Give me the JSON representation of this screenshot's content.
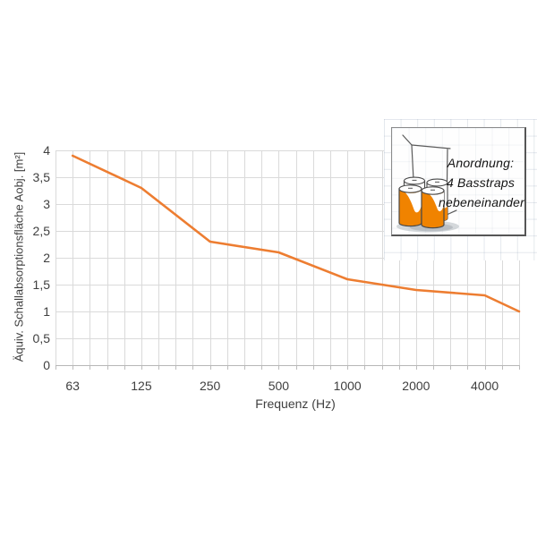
{
  "chart": {
    "y_axis": {
      "title": "Äquiv. Schallabsorptionsfläche Aobj. [m²]",
      "tick_labels": [
        "4",
        "3,5",
        "3",
        "2,5",
        "2",
        "1,5",
        "1",
        "0,5",
        "0"
      ]
    },
    "x_axis": {
      "title": "Frequenz (Hz)",
      "tick_labels": [
        "63",
        "125",
        "250",
        "500",
        "1000",
        "2000",
        "4000"
      ]
    }
  },
  "chart_data": {
    "type": "line",
    "title": "",
    "xlabel": "Frequenz (Hz)",
    "ylabel": "Äquiv. Schallabsorptionsfläche Aobj. [m²]",
    "x_scale": "logarithmic-octaves",
    "x_tick_labels": [
      "63",
      "125",
      "250",
      "500",
      "1000",
      "2000",
      "4000"
    ],
    "y_tick_labels": [
      "0",
      "0,5",
      "1",
      "1,5",
      "2",
      "2,5",
      "3",
      "3,5",
      "4"
    ],
    "ylim": [
      0,
      4
    ],
    "y_tick_step": 0.5,
    "grid": true,
    "minor_x_gridlines_per_octave": 4,
    "x_gridline_intervals_total": 27,
    "series": [
      {
        "name": "4 Basstraps nebeneinander",
        "color": "#ED7D31",
        "x": [
          63,
          125,
          250,
          500,
          1000,
          2000,
          4000,
          5000
        ],
        "y": [
          3.9,
          3.3,
          2.3,
          2.1,
          1.6,
          1.4,
          1.3,
          1.0
        ],
        "x_gridline_index": [
          1,
          5,
          9,
          13,
          17,
          21,
          25,
          27
        ]
      }
    ],
    "legend_position": "inset card top-right"
  },
  "inset": {
    "lines": [
      "Anordnung:",
      "4 Basstraps",
      "nebeneinander"
    ]
  },
  "colors": {
    "line_orange": "#ED7D31",
    "trap_orange": "#F08300",
    "gridline": "#DADADA",
    "axis_line": "#B7B7B7",
    "text": "#3F3F3F",
    "card_border": "#565656"
  }
}
